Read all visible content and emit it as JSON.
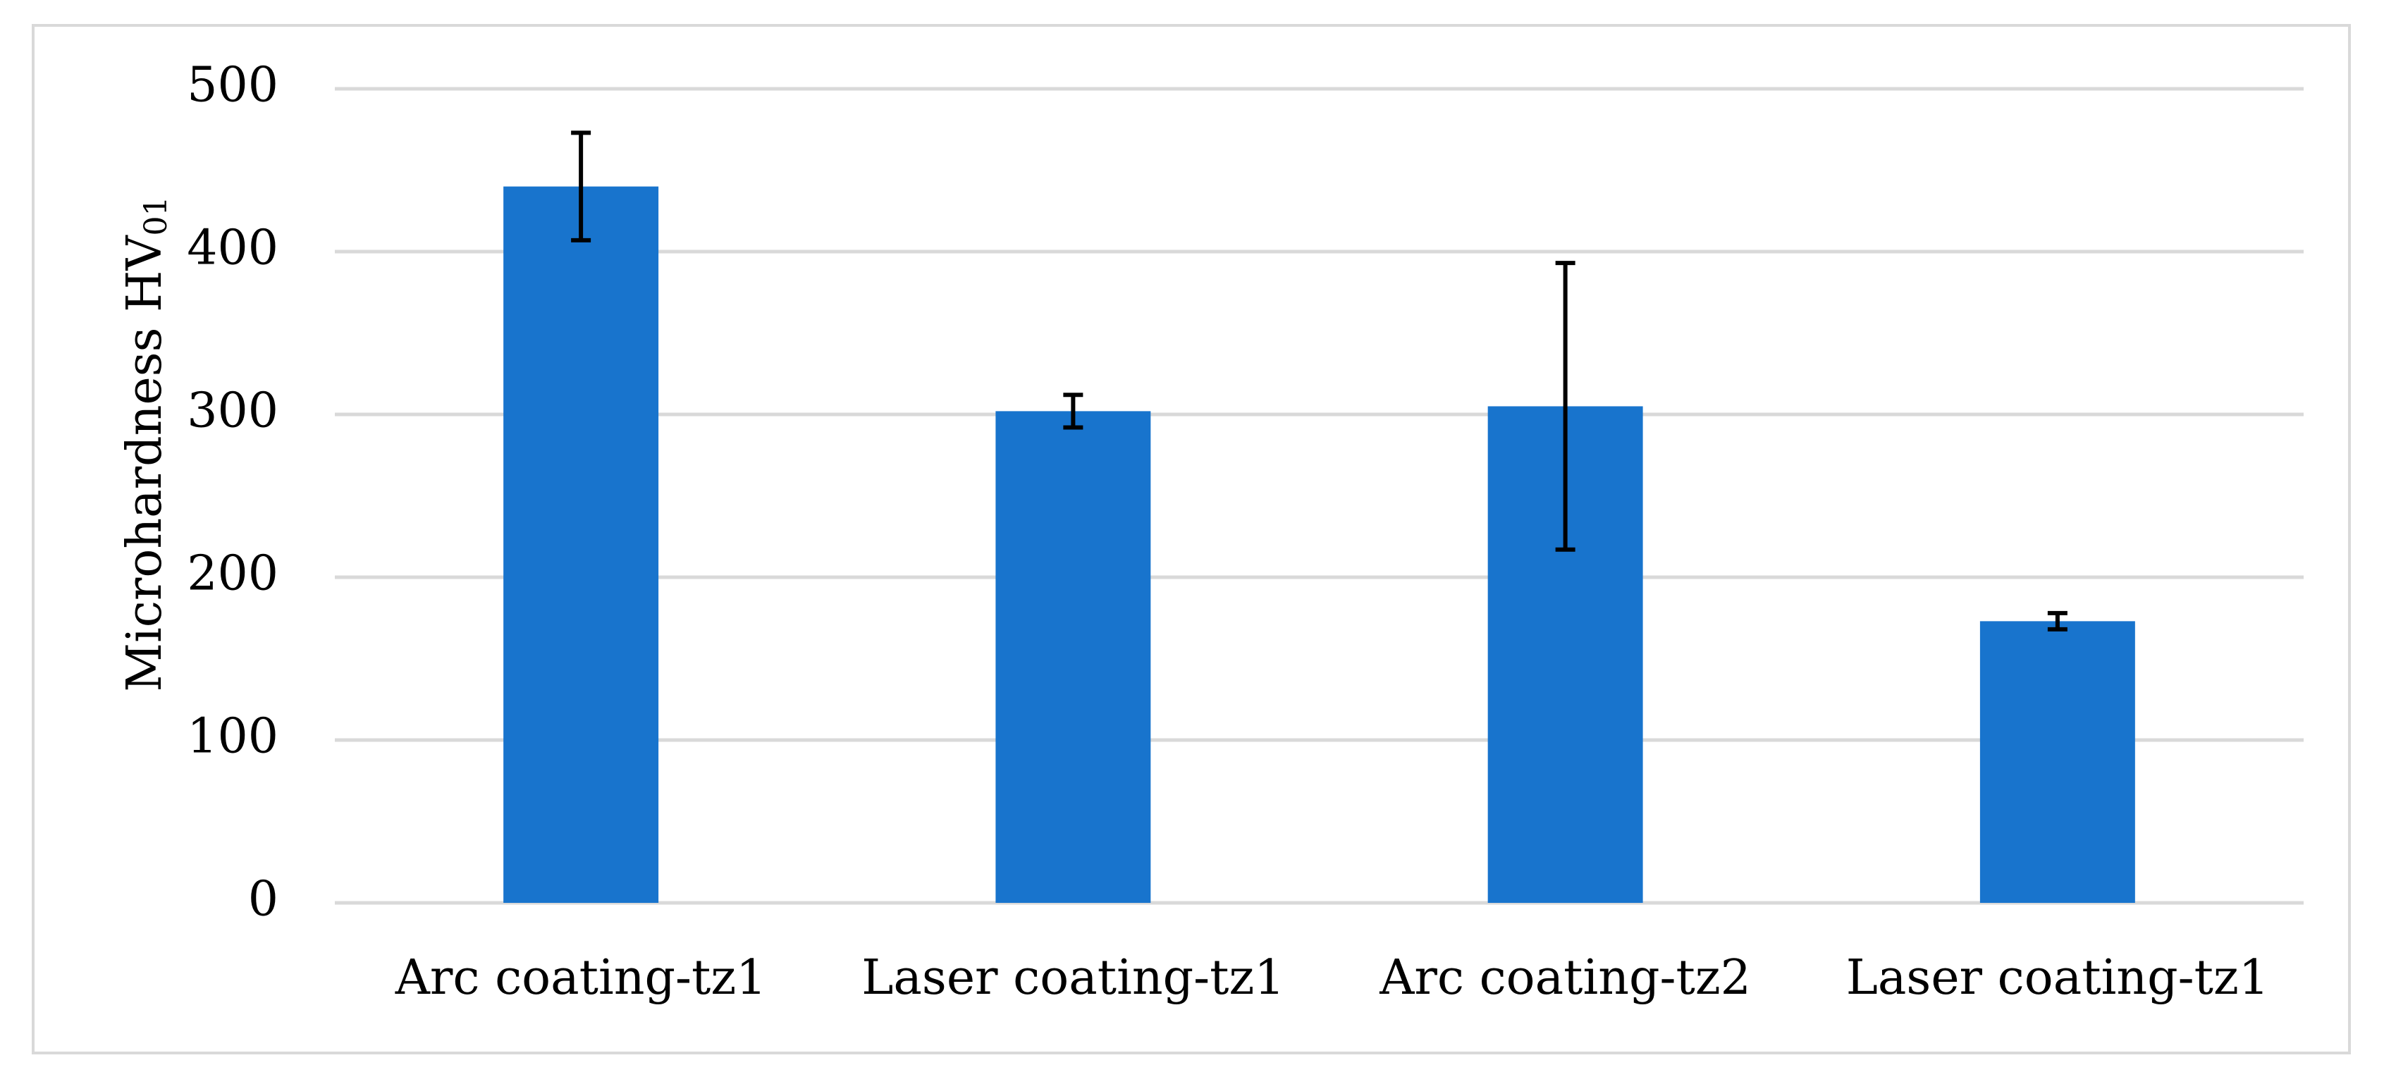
{
  "chart_data": {
    "type": "bar",
    "title": "",
    "xlabel": "",
    "ylabel": "Microhardness HV",
    "ylabel_subscript": "01",
    "categories": [
      "Arc coating-tz1",
      "Laser coating-tz1",
      "Arc coating-tz2",
      "Laser coating-tz1"
    ],
    "values": [
      440,
      302,
      305,
      173
    ],
    "error": [
      33,
      10,
      88,
      5
    ],
    "ylim": [
      0,
      500
    ],
    "yticks": [
      0,
      100,
      200,
      300,
      400,
      500
    ],
    "grid": true,
    "legend": "none",
    "bar_color": "#1874cd",
    "grid_color": "#d9d9d9",
    "error_color": "#000000"
  }
}
